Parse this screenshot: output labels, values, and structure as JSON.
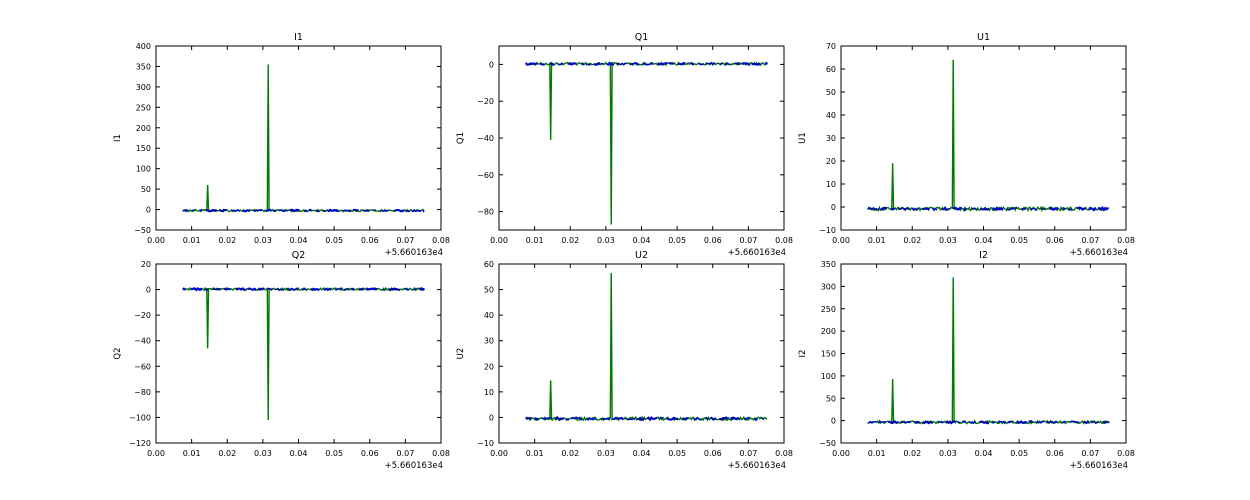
{
  "figure": {
    "background_color": "#ffffff",
    "spine_color": "#000000",
    "text_color": "#000000",
    "green_series_color": "#007a00",
    "blue_series_color": "#0000d8",
    "blue_dash_color": "#0000bb"
  },
  "chart_data": [
    {
      "type": "line",
      "title": "I1",
      "ylabel": "I1",
      "xlim": [
        0.0,
        0.08
      ],
      "ylim": [
        -50,
        400
      ],
      "xtick_labels": [
        "0.00",
        "0.01",
        "0.02",
        "0.03",
        "0.04",
        "0.05",
        "0.06",
        "0.07",
        "0.08"
      ],
      "yticks": [
        -50,
        0,
        50,
        100,
        150,
        200,
        250,
        300,
        350,
        400
      ],
      "x_offset_label": "+5.660163e4",
      "data_x_range": [
        0.0075,
        0.0755
      ],
      "baseline_center": -2.5,
      "baseline_noise": 2.5,
      "spikes": [
        {
          "x": 0.0145,
          "y": 60
        },
        {
          "x": 0.0315,
          "y": 355
        }
      ]
    },
    {
      "type": "line",
      "title": "Q1",
      "ylabel": "Q1",
      "xlim": [
        0.0,
        0.08
      ],
      "ylim": [
        -90,
        10
      ],
      "xtick_labels": [
        "0.00",
        "0.01",
        "0.02",
        "0.03",
        "0.04",
        "0.05",
        "0.06",
        "0.07",
        "0.08"
      ],
      "yticks": [
        0,
        -20,
        -40,
        -60,
        -80
      ],
      "x_offset_label": "+5.660163e4",
      "data_x_range": [
        0.0075,
        0.0755
      ],
      "baseline_center": 0.3,
      "baseline_noise": 0.7,
      "spikes": [
        {
          "x": 0.0145,
          "y": -41
        },
        {
          "x": 0.0315,
          "y": -87
        }
      ]
    },
    {
      "type": "line",
      "title": "U1",
      "ylabel": "U1",
      "xlim": [
        0.0,
        0.08
      ],
      "ylim": [
        -10,
        70
      ],
      "xtick_labels": [
        "0.00",
        "0.01",
        "0.02",
        "0.03",
        "0.04",
        "0.05",
        "0.06",
        "0.07",
        "0.08"
      ],
      "yticks": [
        -10,
        0,
        10,
        20,
        30,
        40,
        50,
        60,
        70
      ],
      "x_offset_label": "+5.660163e4",
      "data_x_range": [
        0.0075,
        0.0755
      ],
      "baseline_center": -0.8,
      "baseline_noise": 0.7,
      "spikes": [
        {
          "x": 0.0145,
          "y": 19
        },
        {
          "x": 0.0315,
          "y": 64
        }
      ]
    },
    {
      "type": "line",
      "title": "Q2",
      "ylabel": "Q2",
      "xlim": [
        0.0,
        0.08
      ],
      "ylim": [
        -120,
        20
      ],
      "xtick_labels": [
        "0.00",
        "0.01",
        "0.02",
        "0.03",
        "0.04",
        "0.05",
        "0.06",
        "0.07",
        "0.08"
      ],
      "yticks": [
        20,
        0,
        -20,
        -40,
        -60,
        -80,
        -100,
        -120
      ],
      "x_offset_label": "+5.660163e4",
      "data_x_range": [
        0.0075,
        0.0755
      ],
      "baseline_center": 0.3,
      "baseline_noise": 0.9,
      "spikes": [
        {
          "x": 0.0145,
          "y": -46
        },
        {
          "x": 0.0315,
          "y": -102
        }
      ]
    },
    {
      "type": "line",
      "title": "U2",
      "ylabel": "U2",
      "xlim": [
        0.0,
        0.08
      ],
      "ylim": [
        -10,
        60
      ],
      "xtick_labels": [
        "0.00",
        "0.01",
        "0.02",
        "0.03",
        "0.04",
        "0.05",
        "0.06",
        "0.07",
        "0.08"
      ],
      "yticks": [
        -10,
        0,
        10,
        20,
        30,
        40,
        50,
        60
      ],
      "x_offset_label": "+5.660163e4",
      "data_x_range": [
        0.0075,
        0.0755
      ],
      "baseline_center": -0.5,
      "baseline_noise": 0.6,
      "spikes": [
        {
          "x": 0.0145,
          "y": 14.5
        },
        {
          "x": 0.0315,
          "y": 56.5
        }
      ]
    },
    {
      "type": "line",
      "title": "I2",
      "ylabel": "I2",
      "xlim": [
        0.0,
        0.08
      ],
      "ylim": [
        -50,
        350
      ],
      "xtick_labels": [
        "0.00",
        "0.01",
        "0.02",
        "0.03",
        "0.04",
        "0.05",
        "0.06",
        "0.07",
        "0.08"
      ],
      "yticks": [
        -50,
        0,
        50,
        100,
        150,
        200,
        250,
        300,
        350
      ],
      "x_offset_label": "+5.660163e4",
      "data_x_range": [
        0.0075,
        0.0755
      ],
      "baseline_center": -3.5,
      "baseline_noise": 3.0,
      "spikes": [
        {
          "x": 0.0145,
          "y": 93
        },
        {
          "x": 0.0315,
          "y": 320
        }
      ]
    }
  ]
}
